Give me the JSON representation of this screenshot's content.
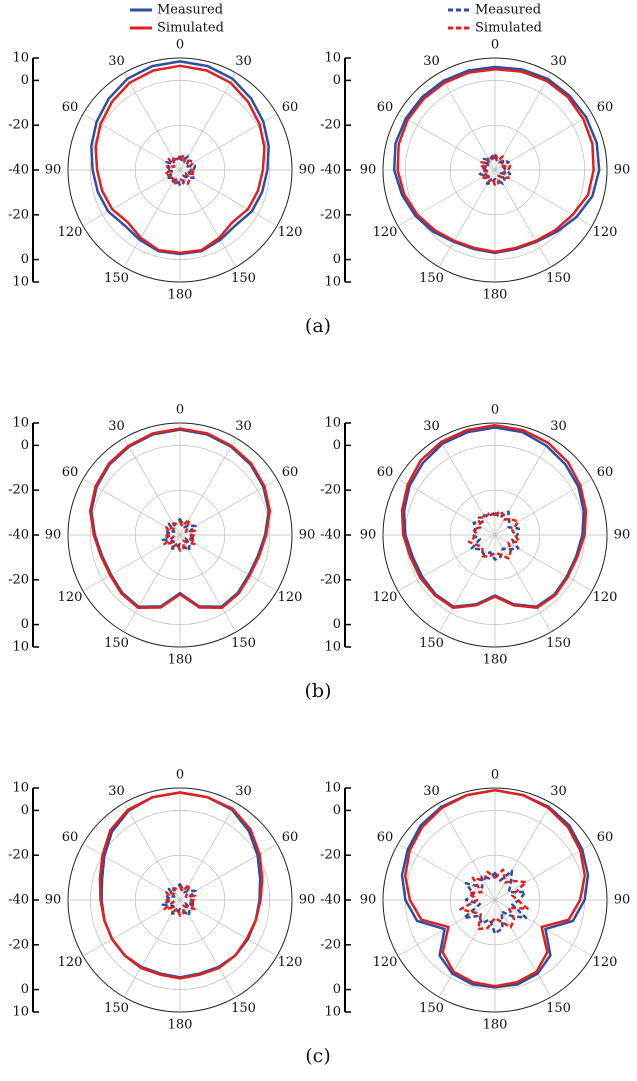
{
  "legend": [
    {
      "name": "Measured",
      "color": "#2c4ea3",
      "style": "solid"
    },
    {
      "name": "Simulated",
      "color": "#e0201e",
      "style": "solid"
    },
    {
      "name": "Measured",
      "color": "#2c4ea3",
      "style": "dashed"
    },
    {
      "name": "Simulated",
      "color": "#e0201e",
      "style": "dashed"
    }
  ],
  "captions": [
    "(a)",
    "(b)",
    "(c)"
  ],
  "chart_data": [
    {
      "type": "polar",
      "rlim": [
        -40,
        10
      ],
      "rticks": [
        -40,
        -20,
        0,
        10
      ],
      "theta": [
        0,
        15,
        30,
        45,
        60,
        75,
        90,
        105,
        120,
        135,
        150,
        165,
        180,
        195,
        210,
        225,
        240,
        255,
        270,
        285,
        300,
        315,
        330,
        345
      ],
      "thetaticks": [
        0,
        30,
        60,
        90,
        120,
        150,
        180,
        {
          "value": 210,
          "label": "150"
        },
        {
          "value": 240,
          "label": "120"
        },
        {
          "value": 270,
          "label": "90"
        },
        {
          "value": 300,
          "label": "60"
        },
        {
          "value": 330,
          "label": "30"
        }
      ],
      "series": [
        {
          "color": "#2c4ea3",
          "style": "solid",
          "values": [
            8.5,
            8,
            7,
            5,
            3,
            1,
            -1,
            -2,
            -3,
            -5,
            -4,
            -2.5,
            -2.5,
            -2.5,
            -4,
            -5,
            -3,
            -2,
            -1,
            1,
            3,
            5,
            7,
            8
          ]
        },
        {
          "color": "#e0201e",
          "style": "solid",
          "values": [
            6.5,
            6,
            5,
            3,
            1,
            -1,
            -3,
            -4,
            -5,
            -7,
            -5,
            -3,
            -3,
            -3,
            -5,
            -7,
            -5,
            -4,
            -3,
            -1,
            1,
            3,
            5,
            6
          ]
        },
        {
          "color": "#2c4ea3",
          "style": "dashed",
          "values": [
            -34,
            -36,
            -33,
            -35,
            -37,
            -33,
            -34,
            -36,
            -33,
            -35,
            -37,
            -34,
            -33,
            -36,
            -34,
            -35,
            -33,
            -37,
            -34,
            -35,
            -33,
            -36,
            -34,
            -35
          ]
        },
        {
          "color": "#e0201e",
          "style": "dashed",
          "values": [
            -35,
            -33,
            -36,
            -34,
            -33,
            -36,
            -35,
            -33,
            -37,
            -34,
            -33,
            -35,
            -36,
            -34,
            -33,
            -36,
            -35,
            -33,
            -36,
            -34,
            -37,
            -33,
            -35,
            -34
          ]
        }
      ]
    },
    {
      "type": "polar",
      "rlim": [
        -40,
        10
      ],
      "rticks": [
        -40,
        -20,
        0,
        10
      ],
      "theta": [
        0,
        15,
        30,
        45,
        60,
        75,
        90,
        105,
        120,
        135,
        150,
        165,
        180,
        195,
        210,
        225,
        240,
        255,
        270,
        285,
        300,
        315,
        330,
        345
      ],
      "thetaticks": [
        0,
        30,
        60,
        90,
        120,
        150,
        180,
        {
          "value": 210,
          "label": "150"
        },
        {
          "value": 240,
          "label": "120"
        },
        {
          "value": 270,
          "label": "90"
        },
        {
          "value": 300,
          "label": "60"
        },
        {
          "value": 330,
          "label": "30"
        }
      ],
      "series": [
        {
          "color": "#2c4ea3",
          "style": "solid",
          "values": [
            6,
            6.5,
            7,
            7,
            7,
            7,
            6.5,
            5,
            2,
            -1,
            -3,
            -3.5,
            -3,
            -3.5,
            -3,
            -1,
            1,
            3,
            5,
            6,
            6,
            6,
            6,
            6
          ]
        },
        {
          "color": "#e0201e",
          "style": "solid",
          "values": [
            5,
            5.5,
            6,
            6,
            5.5,
            5,
            4,
            3,
            0,
            -2,
            -3.5,
            -4,
            -3.5,
            -4,
            -3.5,
            -2,
            0,
            2,
            3.5,
            4.5,
            5,
            5,
            5,
            5
          ]
        },
        {
          "color": "#2c4ea3",
          "style": "dashed",
          "values": [
            -33,
            -35,
            -36,
            -34,
            -33,
            -36,
            -35,
            -33,
            -37,
            -34,
            -33,
            -35,
            -36,
            -34,
            -33,
            -36,
            -35,
            -33,
            -36,
            -34,
            -37,
            -33,
            -35,
            -34
          ]
        },
        {
          "color": "#e0201e",
          "style": "dashed",
          "values": [
            -34,
            -36,
            -33,
            -35,
            -37,
            -33,
            -34,
            -36,
            -33,
            -35,
            -37,
            -34,
            -33,
            -36,
            -34,
            -35,
            -33,
            -37,
            -34,
            -35,
            -33,
            -36,
            -34,
            -35
          ]
        }
      ]
    },
    {
      "type": "polar",
      "rlim": [
        -40,
        10
      ],
      "rticks": [
        -40,
        -20,
        0,
        10
      ],
      "theta": [
        0,
        15,
        30,
        45,
        60,
        75,
        90,
        105,
        120,
        135,
        150,
        165,
        180,
        195,
        210,
        225,
        240,
        255,
        270,
        285,
        300,
        315,
        330,
        345
      ],
      "thetaticks": [
        0,
        30,
        60,
        90,
        120,
        150,
        180,
        {
          "value": 210,
          "label": "150"
        },
        {
          "value": 240,
          "label": "120"
        },
        {
          "value": 270,
          "label": "90"
        },
        {
          "value": 300,
          "label": "60"
        },
        {
          "value": 330,
          "label": "30"
        }
      ],
      "series": [
        {
          "color": "#2c4ea3",
          "style": "solid",
          "values": [
            7,
            6.5,
            5.5,
            4.5,
            3,
            1,
            -2,
            -4,
            -4.5,
            -3.5,
            -3,
            -7,
            -14,
            -7,
            -3,
            -3.5,
            -4.5,
            -4,
            -2,
            1,
            3,
            4.5,
            5.5,
            6.5
          ]
        },
        {
          "color": "#e0201e",
          "style": "solid",
          "values": [
            7.5,
            7,
            6,
            5,
            3.5,
            1.5,
            -1.5,
            -3.5,
            -4,
            -3,
            -2.5,
            -6.5,
            -13.5,
            -6.5,
            -2.5,
            -3,
            -4,
            -3.5,
            -1.5,
            1.5,
            3.5,
            5,
            6,
            7
          ]
        },
        {
          "color": "#2c4ea3",
          "style": "dashed",
          "values": [
            -33,
            -35,
            -36,
            -34,
            -32,
            -36,
            -35,
            -33,
            -37,
            -34,
            -32,
            -35,
            -36,
            -34,
            -33,
            -36,
            -35,
            -32,
            -36,
            -34,
            -37,
            -33,
            -35,
            -34
          ]
        },
        {
          "color": "#e0201e",
          "style": "dashed",
          "values": [
            -34,
            -36,
            -32,
            -35,
            -37,
            -33,
            -34,
            -36,
            -32,
            -35,
            -37,
            -34,
            -33,
            -36,
            -34,
            -35,
            -32,
            -37,
            -34,
            -35,
            -33,
            -36,
            -34,
            -35
          ]
        }
      ]
    },
    {
      "type": "polar",
      "rlim": [
        -40,
        10
      ],
      "rticks": [
        -40,
        -20,
        0,
        10
      ],
      "theta": [
        0,
        15,
        30,
        45,
        60,
        75,
        90,
        105,
        120,
        135,
        150,
        165,
        180,
        195,
        210,
        225,
        240,
        255,
        270,
        285,
        300,
        315,
        330,
        345
      ],
      "thetaticks": [
        0,
        30,
        60,
        90,
        120,
        150,
        180,
        {
          "value": 210,
          "label": "150"
        },
        {
          "value": 240,
          "label": "120"
        },
        {
          "value": 270,
          "label": "90"
        },
        {
          "value": 300,
          "label": "60"
        },
        {
          "value": 330,
          "label": "30"
        }
      ],
      "series": [
        {
          "color": "#2c4ea3",
          "style": "solid",
          "values": [
            8,
            7.5,
            6,
            4.5,
            3,
            1,
            -1,
            -2.5,
            -3,
            -2.5,
            -3,
            -8,
            -13,
            -8,
            -3,
            -2.5,
            -2.5,
            -2,
            0,
            2,
            4,
            5.5,
            7,
            7.5
          ]
        },
        {
          "color": "#e0201e",
          "style": "solid",
          "values": [
            9,
            8.5,
            7.5,
            6,
            4,
            2,
            0,
            -2,
            -2.5,
            -2,
            -2.5,
            -7.5,
            -12.5,
            -7.5,
            -2.5,
            -2,
            -1.5,
            -1,
            1,
            3,
            5,
            7,
            8,
            8.5
          ]
        },
        {
          "color": "#2c4ea3",
          "style": "dashed",
          "values": [
            -30,
            -32,
            -28,
            -31,
            -33,
            -29,
            -30,
            -32,
            -28,
            -31,
            -33,
            -30,
            -29,
            -32,
            -30,
            -31,
            -28,
            -33,
            -30,
            -31,
            -29,
            -32,
            -30,
            -31
          ]
        },
        {
          "color": "#e0201e",
          "style": "dashed",
          "values": [
            -31,
            -29,
            -32,
            -30,
            -28,
            -32,
            -31,
            -29,
            -33,
            -30,
            -28,
            -31,
            -32,
            -30,
            -29,
            -32,
            -31,
            -28,
            -32,
            -30,
            -33,
            -29,
            -31,
            -30
          ]
        }
      ]
    },
    {
      "type": "polar",
      "rlim": [
        -40,
        10
      ],
      "rticks": [
        -40,
        -20,
        0,
        10
      ],
      "theta": [
        0,
        15,
        30,
        45,
        60,
        75,
        90,
        105,
        120,
        135,
        150,
        165,
        180,
        195,
        210,
        225,
        240,
        255,
        270,
        285,
        300,
        315,
        330,
        345
      ],
      "thetaticks": [
        0,
        30,
        60,
        90,
        120,
        150,
        180,
        {
          "value": 210,
          "label": "150"
        },
        {
          "value": 240,
          "label": "120"
        },
        {
          "value": 270,
          "label": "90"
        },
        {
          "value": 300,
          "label": "60"
        },
        {
          "value": 330,
          "label": "30"
        }
      ],
      "series": [
        {
          "color": "#2c4ea3",
          "style": "solid",
          "values": [
            8,
            7.5,
            6.5,
            3.5,
            0,
            -3,
            -4.5,
            -5,
            -5,
            -5,
            -5.5,
            -6,
            -5.5,
            -6,
            -5.5,
            -5,
            -5,
            -5,
            -5,
            -4,
            -1,
            3,
            6,
            7.5
          ]
        },
        {
          "color": "#e0201e",
          "style": "solid",
          "values": [
            8,
            7.5,
            7,
            4.5,
            1,
            -2,
            -4,
            -5,
            -5.5,
            -5,
            -5,
            -5.5,
            -5,
            -5.5,
            -5,
            -5,
            -5,
            -5,
            -4.5,
            -3,
            0,
            4,
            6.5,
            7.5
          ]
        },
        {
          "color": "#2c4ea3",
          "style": "dashed",
          "values": [
            -33,
            -35,
            -36,
            -34,
            -32,
            -36,
            -35,
            -33,
            -37,
            -34,
            -32,
            -35,
            -36,
            -34,
            -33,
            -36,
            -35,
            -32,
            -36,
            -34,
            -37,
            -33,
            -35,
            -34
          ]
        },
        {
          "color": "#e0201e",
          "style": "dashed",
          "values": [
            -34,
            -36,
            -32,
            -35,
            -37,
            -33,
            -34,
            -36,
            -32,
            -35,
            -37,
            -34,
            -33,
            -36,
            -34,
            -35,
            -32,
            -37,
            -34,
            -35,
            -33,
            -36,
            -34,
            -35
          ]
        }
      ]
    },
    {
      "type": "polar",
      "rlim": [
        -40,
        10
      ],
      "rticks": [
        -40,
        -20,
        0,
        10
      ],
      "theta": [
        0,
        15,
        30,
        45,
        60,
        75,
        90,
        105,
        120,
        135,
        150,
        165,
        180,
        195,
        210,
        225,
        240,
        255,
        270,
        285,
        300,
        315,
        330,
        345
      ],
      "thetaticks": [
        0,
        30,
        60,
        90,
        120,
        150,
        180,
        {
          "value": 210,
          "label": "150"
        },
        {
          "value": 240,
          "label": "120"
        },
        {
          "value": 270,
          "label": "90"
        },
        {
          "value": 300,
          "label": "60"
        },
        {
          "value": 330,
          "label": "30"
        }
      ],
      "series": [
        {
          "color": "#2c4ea3",
          "style": "solid",
          "values": [
            9,
            8.5,
            8,
            7,
            5,
            3,
            0,
            -4,
            -14,
            -5,
            -2,
            -1,
            -1,
            -1,
            -2,
            -5,
            -14,
            -4,
            0,
            3,
            5,
            7,
            8,
            8.5
          ]
        },
        {
          "color": "#e0201e",
          "style": "solid",
          "values": [
            9,
            8.5,
            7.5,
            6,
            4,
            1.5,
            -2,
            -6,
            -16,
            -7,
            -3,
            -2,
            -1.5,
            -2,
            -3,
            -7,
            -16,
            -6,
            -2,
            1.5,
            4,
            6,
            7.5,
            8.5
          ]
        },
        {
          "color": "#2c4ea3",
          "style": "dashed",
          "values": [
            -28,
            -31,
            -25,
            -30,
            -33,
            -26,
            -29,
            -32,
            -24,
            -30,
            -34,
            -27,
            -25,
            -31,
            -28,
            -30,
            -24,
            -33,
            -27,
            -30,
            -25,
            -32,
            -28,
            -30
          ]
        },
        {
          "color": "#e0201e",
          "style": "dashed",
          "values": [
            -30,
            -26,
            -31,
            -28,
            -24,
            -32,
            -30,
            -25,
            -33,
            -28,
            -26,
            -30,
            -32,
            -27,
            -25,
            -31,
            -29,
            -24,
            -32,
            -28,
            -33,
            -26,
            -30,
            -27
          ]
        }
      ]
    }
  ]
}
